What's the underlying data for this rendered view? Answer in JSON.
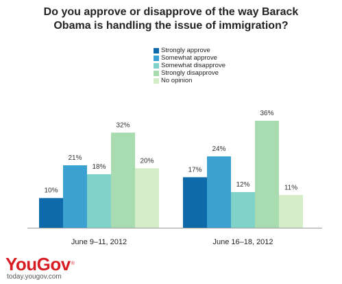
{
  "chart_data": {
    "type": "bar",
    "title": "Do you approve or disapprove of the way Barack\nObama is handling the issue of immigration?",
    "categories": [
      "June 9–11, 2012",
      "June 16–18, 2012"
    ],
    "series": [
      {
        "name": "Strongly approve",
        "color": "#0f6aa9",
        "values": [
          10,
          17
        ],
        "labels": [
          "10%",
          "17%"
        ]
      },
      {
        "name": "Somewhat approve",
        "color": "#3aa1d1",
        "values": [
          21,
          24
        ],
        "labels": [
          "21%",
          "24%"
        ]
      },
      {
        "name": "Somewhat disapprove",
        "color": "#7fd3c9",
        "values": [
          18,
          12
        ],
        "labels": [
          "18%",
          "12%"
        ]
      },
      {
        "name": "Strongly disapprove",
        "color": "#a8dcb0",
        "values": [
          32,
          36
        ],
        "labels": [
          "32%",
          "36%"
        ]
      },
      {
        "name": "No opinion",
        "color": "#d4ecc7",
        "values": [
          20,
          11
        ],
        "labels": [
          "20%",
          "11%"
        ]
      }
    ],
    "ylim": [
      0,
      36
    ],
    "legend_position": "top-center",
    "grid": false
  },
  "brand": {
    "logo_text": "YouGov",
    "logo_mark": "®",
    "url": "today.yougov.com",
    "color": "#d71d23"
  }
}
